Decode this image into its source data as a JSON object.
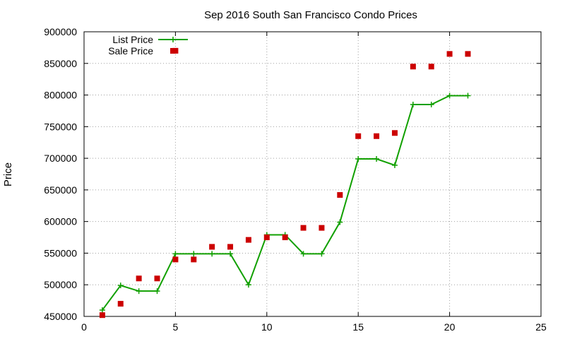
{
  "chart_data": {
    "type": "line",
    "title": "Sep 2016 South San Francisco Condo Prices",
    "xlabel": "",
    "ylabel": "Price",
    "xlim": [
      0,
      25
    ],
    "ylim": [
      450000,
      900000
    ],
    "x_ticks": [
      "0",
      "5",
      "10",
      "15",
      "20",
      "25"
    ],
    "y_ticks": [
      "450000",
      "500000",
      "550000",
      "600000",
      "650000",
      "700000",
      "750000",
      "800000",
      "850000",
      "900000"
    ],
    "grid": true,
    "legend_position": "top-left",
    "series": [
      {
        "name": "List Price",
        "style": "line-with-plus-markers",
        "color": "#11a000",
        "x": [
          1,
          2,
          3,
          4,
          5,
          6,
          7,
          8,
          9,
          10,
          11,
          12,
          13,
          14,
          15,
          16,
          17,
          18,
          19,
          20,
          21
        ],
        "values": [
          460000,
          499000,
          490000,
          490000,
          549000,
          549000,
          549000,
          549000,
          500000,
          579000,
          579000,
          549000,
          549000,
          599000,
          699000,
          699000,
          689000,
          785000,
          785000,
          799000,
          799000
        ]
      },
      {
        "name": "Sale Price",
        "style": "square-points",
        "color": "#cc0000",
        "x": [
          1,
          2,
          3,
          4,
          5,
          6,
          7,
          8,
          9,
          10,
          11,
          12,
          13,
          14,
          15,
          16,
          17,
          18,
          19,
          20,
          21
        ],
        "values": [
          452000,
          470000,
          510000,
          510000,
          540000,
          540000,
          560000,
          560000,
          571000,
          575000,
          575000,
          590000,
          590000,
          642000,
          735000,
          735000,
          740000,
          845000,
          845000,
          865000,
          865000
        ]
      },
      {
        "name": "",
        "style": "square-points",
        "color": "#cc0000",
        "x": [
          5
        ],
        "values": [
          870000
        ]
      }
    ]
  }
}
